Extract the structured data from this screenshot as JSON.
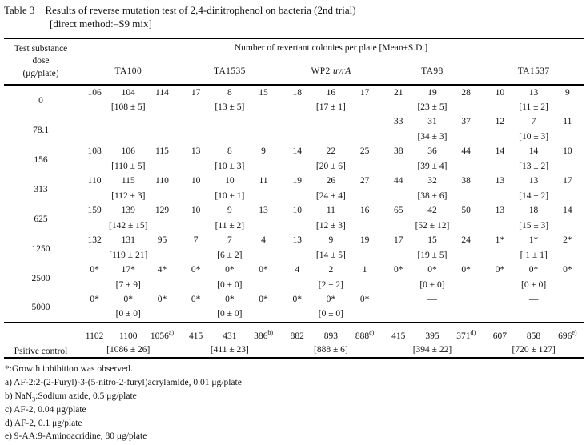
{
  "title": {
    "label": "Table 3",
    "line1": "Results of reverse mutation test of 2,4-dinitrophenol on bacteria (2nd trial)",
    "line2": "[direct method:–S9 mix]"
  },
  "table": {
    "dose_header_lines": [
      "Test substance",
      "dose",
      "(μg/plate)"
    ],
    "span_header": "Number of revertant colonies per plate [Mean±S.D.]",
    "strains": [
      "TA100",
      "TA1535",
      "WP2",
      "TA98",
      "TA1537"
    ],
    "wp2_italic": "uvrA",
    "dash_glyph": "—",
    "rows": [
      {
        "dose": "0",
        "groups": [
          {
            "values": [
              "106",
              "104",
              "114"
            ],
            "mean": "[108 ± 5]"
          },
          {
            "values": [
              "17",
              "8",
              "15"
            ],
            "mean": "[13 ± 5]"
          },
          {
            "values": [
              "18",
              "16",
              "17"
            ],
            "mean": "[17 ± 1]"
          },
          {
            "values": [
              "21",
              "19",
              "28"
            ],
            "mean": "[23 ± 5]"
          },
          {
            "values": [
              "10",
              "13",
              "9"
            ],
            "mean": "[11 ± 2]"
          }
        ]
      },
      {
        "dose": "78.1",
        "groups": [
          {
            "dash": true
          },
          {
            "dash": true
          },
          {
            "dash": true
          },
          {
            "values": [
              "33",
              "31",
              "37"
            ],
            "mean": "[34 ± 3]"
          },
          {
            "values": [
              "12",
              "7",
              "11"
            ],
            "mean": "[10 ± 3]"
          }
        ]
      },
      {
        "dose": "156",
        "groups": [
          {
            "values": [
              "108",
              "106",
              "115"
            ],
            "mean": "[110 ± 5]"
          },
          {
            "values": [
              "13",
              "8",
              "9"
            ],
            "mean": "[10 ± 3]"
          },
          {
            "values": [
              "14",
              "22",
              "25"
            ],
            "mean": "[20 ± 6]"
          },
          {
            "values": [
              "38",
              "36",
              "44"
            ],
            "mean": "[39 ± 4]"
          },
          {
            "values": [
              "14",
              "14",
              "10"
            ],
            "mean": "[13 ± 2]"
          }
        ]
      },
      {
        "dose": "313",
        "groups": [
          {
            "values": [
              "110",
              "115",
              "110"
            ],
            "mean": "[112 ± 3]"
          },
          {
            "values": [
              "10",
              "10",
              "11"
            ],
            "mean": "[10 ± 1]"
          },
          {
            "values": [
              "19",
              "26",
              "27"
            ],
            "mean": "[24 ± 4]"
          },
          {
            "values": [
              "44",
              "32",
              "38"
            ],
            "mean": "[38 ± 6]"
          },
          {
            "values": [
              "13",
              "13",
              "17"
            ],
            "mean": "[14 ± 2]"
          }
        ]
      },
      {
        "dose": "625",
        "groups": [
          {
            "values": [
              "159",
              "139",
              "129"
            ],
            "mean": "[142 ± 15]"
          },
          {
            "values": [
              "10",
              "9",
              "13"
            ],
            "mean": "[11 ± 2]"
          },
          {
            "values": [
              "10",
              "11",
              "16"
            ],
            "mean": "[12 ± 3]"
          },
          {
            "values": [
              "65",
              "42",
              "50"
            ],
            "mean": "[52 ± 12]"
          },
          {
            "values": [
              "13",
              "18",
              "14"
            ],
            "mean": "[15 ± 3]"
          }
        ]
      },
      {
        "dose": "1250",
        "groups": [
          {
            "values": [
              "132",
              "131",
              "95"
            ],
            "mean": "[119 ± 21]"
          },
          {
            "values": [
              "7",
              "7",
              "4"
            ],
            "mean": "[6 ± 2]"
          },
          {
            "values": [
              "13",
              "9",
              "19"
            ],
            "mean": "[14 ± 5]"
          },
          {
            "values": [
              "17",
              "15",
              "24"
            ],
            "mean": "[19 ± 5]"
          },
          {
            "values": [
              "1*",
              "1*",
              "2*"
            ],
            "mean": "[ 1 ± 1]"
          }
        ]
      },
      {
        "dose": "2500",
        "groups": [
          {
            "values": [
              "0*",
              "17*",
              "4*"
            ],
            "mean": "[7 ± 9]"
          },
          {
            "values": [
              "0*",
              "0*",
              "0*"
            ],
            "mean": "[0 ± 0]"
          },
          {
            "values": [
              "4",
              "2",
              "1"
            ],
            "mean": "[2 ± 2]"
          },
          {
            "values": [
              "0*",
              "0*",
              "0*"
            ],
            "mean": "[0 ± 0]"
          },
          {
            "values": [
              "0*",
              "0*",
              "0*"
            ],
            "mean": "[0 ± 0]"
          }
        ]
      },
      {
        "dose": "5000",
        "groups": [
          {
            "values": [
              "0*",
              "0*",
              "0*"
            ],
            "mean": "[0 ± 0]"
          },
          {
            "values": [
              "0*",
              "0*",
              "0*"
            ],
            "mean": "[0 ± 0]"
          },
          {
            "values": [
              "0*",
              "0*",
              "0*"
            ],
            "mean": "[0 ± 0]"
          },
          {
            "dash": true
          },
          {
            "dash": true
          }
        ]
      }
    ],
    "positive_control": {
      "dose": "Psitive control",
      "groups": [
        {
          "values": [
            "1102",
            "1100",
            "1056"
          ],
          "sups": [
            "",
            "",
            "a)"
          ],
          "mean": "[1086 ± 26]"
        },
        {
          "values": [
            "415",
            "431",
            "386"
          ],
          "sups": [
            "",
            "",
            "b)"
          ],
          "mean": "[411 ± 23]"
        },
        {
          "values": [
            "882",
            "893",
            "888"
          ],
          "sups": [
            "",
            "",
            "c)"
          ],
          "mean": "[888 ± 6]"
        },
        {
          "values": [
            "415",
            "395",
            "371"
          ],
          "sups": [
            "",
            "",
            "d)"
          ],
          "mean": "[394 ± 22]"
        },
        {
          "values": [
            "607",
            "858",
            "696"
          ],
          "sups": [
            "",
            "",
            "e)"
          ],
          "mean": "[720 ± 127]"
        }
      ]
    }
  },
  "footnotes": [
    {
      "pre": "*:Growth inhibition was observed."
    },
    {
      "pre": "a) AF-2:2-(2-Furyl)-3-(5-nitro-2-furyl)acrylamide, 0.01 μg/plate"
    },
    {
      "pre": "b) NaN",
      "sub": "3",
      "post": ":Sodium azide, 0.5 μg/plate"
    },
    {
      "pre": "c) AF-2, 0.04 μg/plate"
    },
    {
      "pre": "d) AF-2, 0.1 μg/plate"
    },
    {
      "pre": "e) 9-AA:9-Aminoacridine, 80 μg/plate"
    }
  ]
}
